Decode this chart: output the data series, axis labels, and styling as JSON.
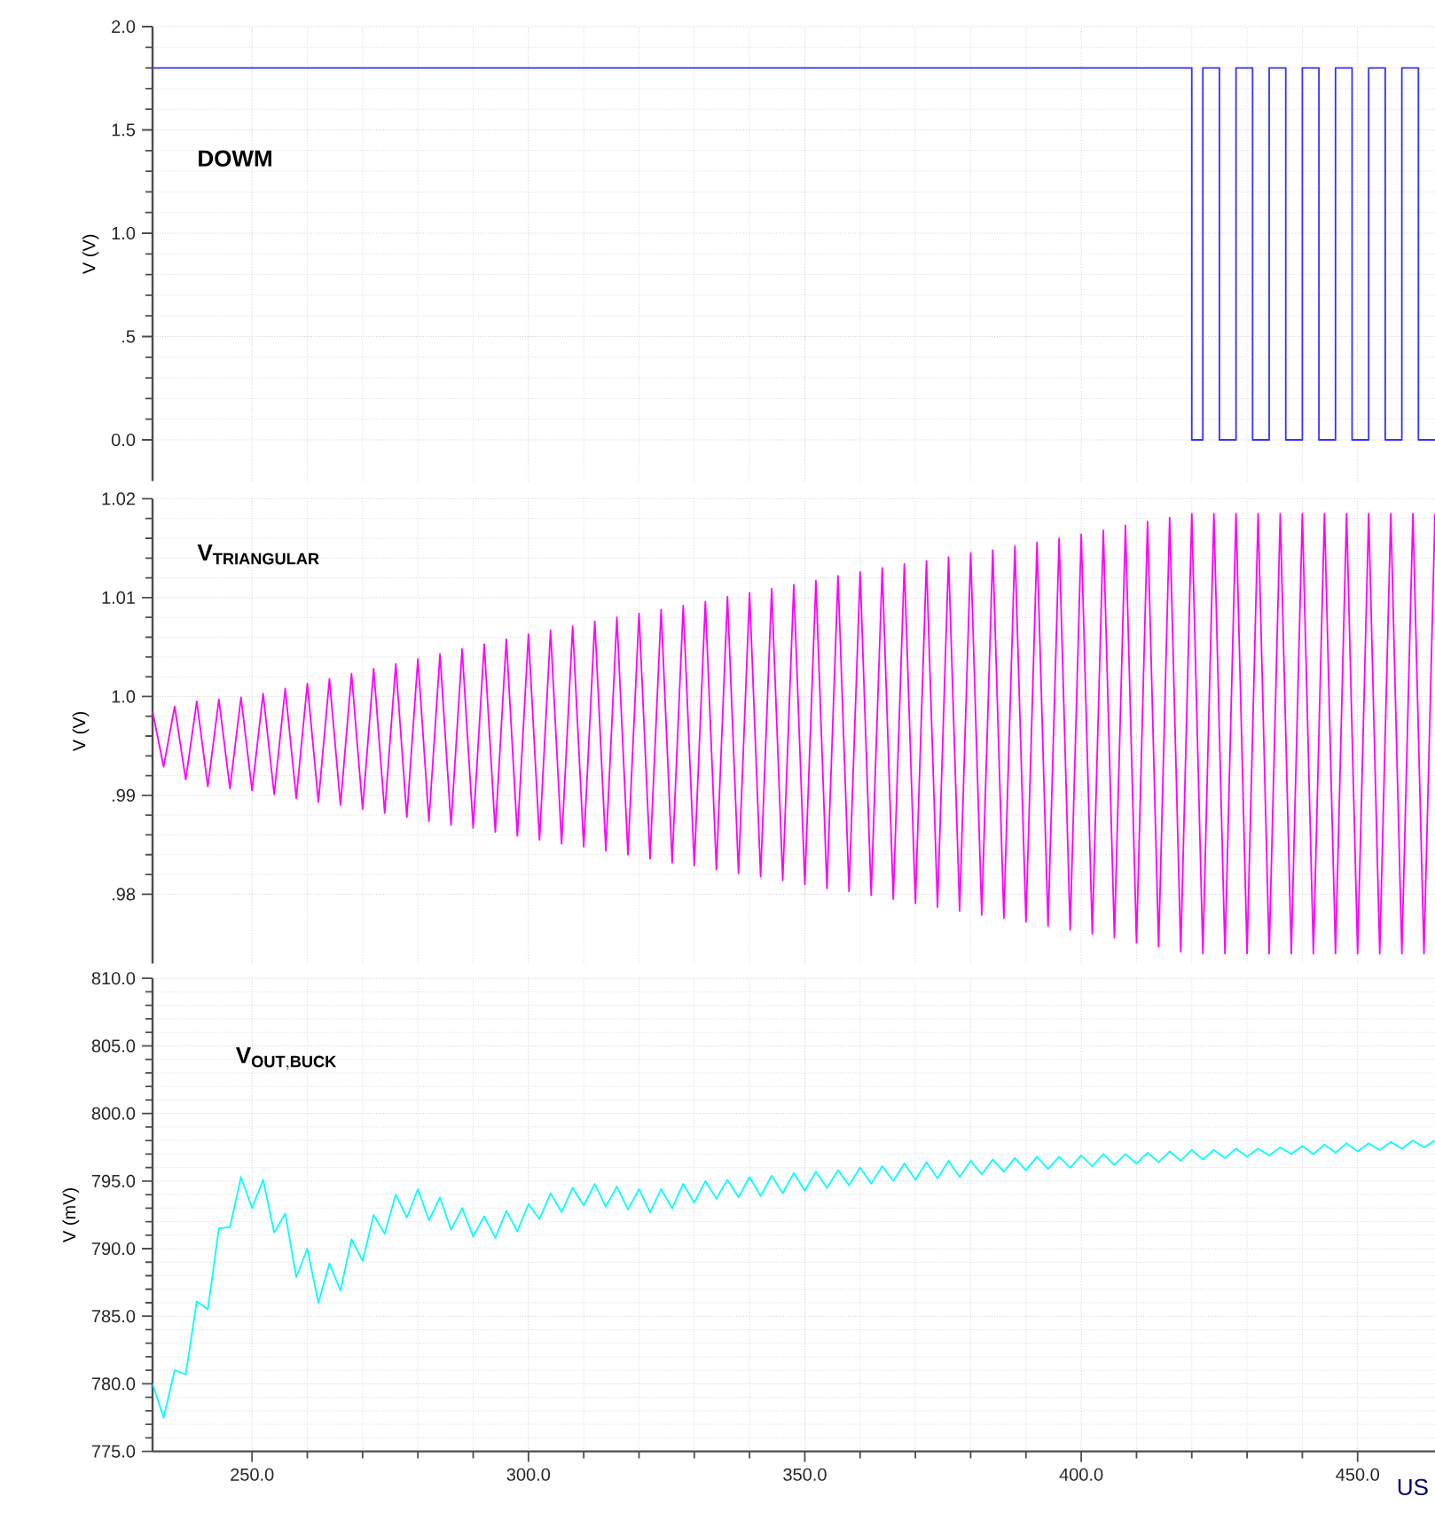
{
  "chart_data": [
    {
      "type": "line",
      "ylabel": "V (V)",
      "annotations": [
        "DOWM"
      ],
      "grid": true,
      "tick_labels": "y",
      "xlim": [
        232,
        464
      ],
      "xticks": [
        250,
        300,
        350,
        400,
        450
      ],
      "ylim": [
        -0.2,
        2.0
      ],
      "yticks": [
        {
          "value": 0,
          "label": "0.0"
        },
        {
          "value": 0.5,
          "label": ".5"
        },
        {
          "value": 1.0,
          "label": "1.0"
        },
        {
          "value": 1.5,
          "label": "1.5"
        },
        {
          "value": 2.0,
          "label": "2.0"
        }
      ],
      "x": [
        232,
        420,
        420,
        422,
        422,
        425,
        425,
        428,
        428,
        431,
        431,
        434,
        434,
        437,
        437,
        440,
        440,
        443,
        443,
        446,
        446,
        449,
        449,
        452,
        452,
        455,
        455,
        458,
        458,
        461,
        461,
        464
      ],
      "series": [
        {
          "color": "#3333ff",
          "values": [
            1.8,
            1.8,
            0,
            0,
            1.8,
            1.8,
            0,
            0,
            1.8,
            1.8,
            0,
            0,
            1.8,
            1.8,
            0,
            0,
            1.8,
            1.8,
            0,
            0,
            1.8,
            1.8,
            0,
            0,
            1.8,
            1.8,
            0,
            0,
            1.8,
            1.8,
            0,
            0
          ]
        }
      ]
    },
    {
      "type": "line",
      "ylabel": "V (V)",
      "annotations": [
        "\\mathbf{V}_{\\mathbf{TRIANGULAR}}"
      ],
      "grid": true,
      "tick_labels": "y",
      "xlim": [
        232,
        464
      ],
      "xticks": [
        250,
        300,
        350,
        400,
        450
      ],
      "ylim": [
        0.973,
        1.02
      ],
      "yticks": [
        {
          "value": 0.98,
          "label": ".98"
        },
        {
          "value": 0.99,
          "label": ".99"
        },
        {
          "value": 1.0,
          "label": "1.0"
        },
        1.01,
        1.02
      ],
      "x": [
        232,
        234,
        236,
        238,
        240,
        242,
        244,
        246,
        248,
        250,
        252,
        254,
        256,
        258,
        260,
        262,
        264,
        266,
        268,
        270,
        272,
        274,
        276,
        278,
        280,
        282,
        284,
        286,
        288,
        290,
        292,
        294,
        296,
        298,
        300,
        302,
        304,
        306,
        308,
        310,
        312,
        314,
        316,
        318,
        320,
        322,
        324,
        326,
        328,
        330,
        332,
        334,
        336,
        338,
        340,
        342,
        344,
        346,
        348,
        350,
        352,
        354,
        356,
        358,
        360,
        362,
        364,
        366,
        368,
        370,
        372,
        374,
        376,
        378,
        380,
        382,
        384,
        386,
        388,
        390,
        392,
        394,
        396,
        398,
        400,
        402,
        404,
        406,
        408,
        410,
        412,
        414,
        416,
        418,
        420,
        422,
        424,
        426,
        428,
        430,
        432,
        434,
        436,
        438,
        440,
        442,
        444,
        446,
        448,
        450,
        452,
        454,
        456,
        458,
        460,
        462,
        464
      ],
      "series": [
        {
          "color": "#ff00ff",
          "values": [
            0.9985,
            0.9929,
            0.999,
            0.9916,
            0.9995,
            0.9909,
            0.9997,
            0.9907,
            0.9999,
            0.9905,
            1.0003,
            0.9901,
            1.0008,
            0.9897,
            1.0013,
            0.9893,
            1.0018,
            0.989,
            1.0023,
            0.9886,
            1.0028,
            0.9882,
            1.0033,
            0.9878,
            1.0038,
            0.9874,
            1.0043,
            0.987,
            1.0048,
            0.9867,
            1.0053,
            0.9863,
            1.0058,
            0.9859,
            1.0063,
            0.9855,
            1.0067,
            0.9851,
            1.0071,
            0.9848,
            1.0076,
            0.9844,
            1.008,
            0.984,
            1.0084,
            0.9836,
            1.0088,
            0.9832,
            1.0092,
            0.9829,
            1.0096,
            0.9825,
            1.0101,
            0.9821,
            1.0105,
            0.9818,
            1.0109,
            0.9814,
            1.0113,
            0.981,
            1.0117,
            0.9806,
            1.0122,
            0.9803,
            1.0126,
            0.9799,
            1.013,
            0.9795,
            1.0134,
            0.9791,
            1.0137,
            0.9787,
            1.0141,
            0.9783,
            1.0145,
            0.9779,
            1.0148,
            0.9776,
            1.0152,
            0.9772,
            1.0156,
            0.9768,
            1.016,
            0.9764,
            1.0164,
            0.976,
            1.0168,
            0.9756,
            1.0173,
            0.9751,
            1.0177,
            0.9747,
            1.0181,
            0.9742,
            1.0185,
            0.974,
            1.0185,
            0.974,
            1.0185,
            0.974,
            1.0185,
            0.974,
            1.0185,
            0.974,
            1.0185,
            0.974,
            1.0185,
            0.974,
            1.0185,
            0.974,
            1.0185,
            0.974,
            1.0185,
            0.974,
            1.0185,
            0.974,
            1.0185
          ]
        }
      ]
    },
    {
      "type": "line",
      "ylabel": "V (mV)",
      "xlabel": "US",
      "annotations": [
        "\\mathbf{V}_{\\mathbf{OUT,BUCK}}"
      ],
      "grid": true,
      "xlim": [
        232,
        464
      ],
      "xticks": [
        {
          "value": 250,
          "label": "250.0"
        },
        {
          "value": 300,
          "label": "300.0"
        },
        {
          "value": 350,
          "label": "350.0"
        },
        {
          "value": 400,
          "label": "400.0"
        },
        {
          "value": 450,
          "label": "450.0"
        }
      ],
      "ylim": [
        775,
        810
      ],
      "yticks": [
        {
          "value": 775,
          "label": "775.0"
        },
        {
          "value": 780,
          "label": "780.0"
        },
        {
          "value": 785,
          "label": "785.0"
        },
        {
          "value": 790,
          "label": "790.0"
        },
        {
          "value": 795,
          "label": "795.0"
        },
        {
          "value": 800,
          "label": "800.0"
        },
        {
          "value": 805,
          "label": "805.0"
        },
        {
          "value": 810,
          "label": "810.0"
        }
      ],
      "x": [
        232,
        234,
        236,
        238,
        240,
        242,
        244,
        246,
        248,
        250,
        252,
        254,
        256,
        258,
        260,
        262,
        264,
        266,
        268,
        270,
        272,
        274,
        276,
        278,
        280,
        282,
        284,
        286,
        288,
        290,
        292,
        294,
        296,
        298,
        300,
        302,
        304,
        306,
        308,
        310,
        312,
        314,
        316,
        318,
        320,
        322,
        324,
        326,
        328,
        330,
        332,
        334,
        336,
        338,
        340,
        342,
        344,
        346,
        348,
        350,
        352,
        354,
        356,
        358,
        360,
        362,
        364,
        366,
        368,
        370,
        372,
        374,
        376,
        378,
        380,
        382,
        384,
        386,
        388,
        390,
        392,
        394,
        396,
        398,
        400,
        402,
        404,
        406,
        408,
        410,
        412,
        414,
        416,
        418,
        420,
        422,
        424,
        426,
        428,
        430,
        432,
        434,
        436,
        438,
        440,
        442,
        444,
        446,
        448,
        450,
        452,
        454,
        456,
        458,
        460,
        462,
        464
      ],
      "series": [
        {
          "color": "#00ffff",
          "values": [
            780.0,
            777.5,
            781.0,
            780.7,
            786.1,
            785.5,
            791.5,
            791.6,
            795.3,
            793.0,
            795.1,
            791.2,
            792.6,
            787.9,
            790.0,
            786.0,
            788.9,
            786.9,
            790.7,
            789.1,
            792.5,
            791.1,
            794.0,
            792.3,
            794.4,
            792.1,
            793.8,
            791.4,
            793.0,
            790.9,
            792.4,
            790.8,
            792.8,
            791.3,
            793.3,
            792.2,
            794.1,
            792.7,
            794.5,
            793.2,
            794.8,
            793.1,
            794.6,
            792.9,
            794.4,
            792.7,
            794.4,
            793.0,
            794.8,
            793.4,
            795.0,
            793.7,
            795.1,
            793.8,
            795.3,
            793.9,
            795.4,
            794.1,
            795.6,
            794.3,
            795.7,
            794.5,
            795.8,
            794.7,
            796.0,
            794.8,
            796.1,
            795.0,
            796.3,
            795.1,
            796.4,
            795.2,
            796.5,
            795.3,
            796.5,
            795.5,
            796.6,
            795.7,
            796.7,
            795.8,
            796.8,
            795.9,
            796.8,
            796.0,
            796.9,
            796.1,
            797.0,
            796.2,
            797.0,
            796.3,
            797.1,
            796.4,
            797.2,
            796.5,
            797.3,
            796.6,
            797.3,
            796.7,
            797.4,
            796.8,
            797.4,
            796.9,
            797.5,
            797.0,
            797.6,
            797.0,
            797.7,
            797.1,
            797.8,
            797.2,
            797.8,
            797.3,
            797.9,
            797.4,
            798.0,
            797.5,
            798.0
          ]
        }
      ]
    }
  ]
}
